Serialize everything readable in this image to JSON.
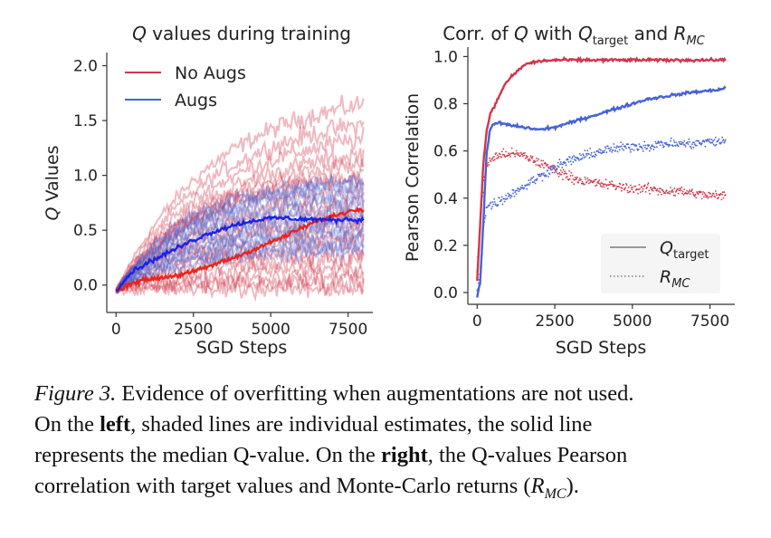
{
  "colors": {
    "no_augs": "#d0364a",
    "augs": "#4562d8",
    "median_no_augs": "#e8251c",
    "median_augs": "#1a22e6"
  },
  "chart_data": [
    {
      "type": "line",
      "title_var": "Q",
      "title_rest": " values during training",
      "xlabel": "SGD Steps",
      "ylabel_var": "Q",
      "ylabel_rest": " Values",
      "xlim": [
        -300,
        8300
      ],
      "ylim": [
        -0.25,
        2.12
      ],
      "xticks": [
        0,
        2500,
        5000,
        7500
      ],
      "xtick_labels": [
        "0",
        "2500",
        "5000",
        "7500"
      ],
      "yticks": [
        0.0,
        0.5,
        1.0,
        1.5,
        2.0
      ],
      "ytick_labels": [
        "0.0",
        "0.5",
        "1.0",
        "1.5",
        "2.0"
      ],
      "grid": false,
      "legend_position": "top-left",
      "legend": [
        {
          "label": "No Augs",
          "color": "#d0364a"
        },
        {
          "label": "Augs",
          "color": "#4562d8"
        }
      ],
      "series": [
        {
          "name": "No Augs",
          "style": "median",
          "x": [
            0,
            500,
            1000,
            1500,
            2000,
            2500,
            3000,
            3500,
            4000,
            4500,
            5000,
            5500,
            6000,
            6500,
            7000,
            7500,
            8000
          ],
          "y": [
            -0.05,
            0.02,
            0.05,
            0.07,
            0.09,
            0.12,
            0.17,
            0.22,
            0.27,
            0.33,
            0.39,
            0.45,
            0.52,
            0.58,
            0.63,
            0.67,
            0.7
          ]
        },
        {
          "name": "Augs",
          "style": "median",
          "x": [
            0,
            500,
            1000,
            1500,
            2000,
            2500,
            3000,
            3500,
            4000,
            4500,
            5000,
            5500,
            6000,
            6500,
            7000,
            7500,
            8000
          ],
          "y": [
            -0.05,
            0.12,
            0.2,
            0.27,
            0.34,
            0.41,
            0.47,
            0.52,
            0.56,
            0.59,
            0.61,
            0.61,
            0.6,
            0.6,
            0.59,
            0.6,
            0.59
          ]
        }
      ],
      "individual_runs_no_augs": [
        1.8,
        1.6,
        1.45,
        1.3,
        1.2,
        1.1,
        1.0,
        0.9,
        0.8,
        0.7,
        0.62,
        0.55,
        0.45,
        0.38,
        0.3,
        0.22,
        0.15,
        0.08,
        0.02,
        -0.03
      ],
      "individual_runs_augs": [
        1.05,
        0.98,
        0.92,
        0.86,
        0.8,
        0.74,
        0.68,
        0.62,
        0.57,
        0.52,
        0.47,
        0.42,
        0.37,
        0.32
      ]
    },
    {
      "type": "line",
      "title_parts": [
        "Corr. of ",
        "Q",
        " with ",
        "Q",
        "target",
        " and ",
        "R",
        "MC"
      ],
      "xlabel": "SGD Steps",
      "ylabel": "Pearson Correlation",
      "xlim": [
        -300,
        8300
      ],
      "ylim": [
        -0.05,
        1.04
      ],
      "xticks": [
        0,
        2500,
        5000,
        7500
      ],
      "xtick_labels": [
        "0",
        "2500",
        "5000",
        "7500"
      ],
      "yticks": [
        0.0,
        0.2,
        0.4,
        0.6,
        0.8,
        1.0
      ],
      "ytick_labels": [
        "0.0",
        "0.2",
        "0.4",
        "0.6",
        "0.8",
        "1.0"
      ],
      "grid": false,
      "legend_position": "bottom-right",
      "legend": [
        {
          "label_main": "Q",
          "label_sub": "target",
          "style": "solid"
        },
        {
          "label_main": "R",
          "label_sub": "MC",
          "style": "dotted"
        }
      ],
      "series": [
        {
          "name": "No Augs",
          "metric": "Q_target",
          "style": "solid",
          "x": [
            0,
            100,
            200,
            300,
            400,
            600,
            800,
            1000,
            1300,
            1600,
            2000,
            2500,
            3000,
            4000,
            5000,
            6000,
            7000,
            8000
          ],
          "y": [
            0.05,
            0.3,
            0.55,
            0.68,
            0.75,
            0.8,
            0.86,
            0.9,
            0.94,
            0.97,
            0.98,
            0.985,
            0.985,
            0.985,
            0.985,
            0.985,
            0.985,
            0.985
          ]
        },
        {
          "name": "Augs",
          "metric": "Q_target",
          "style": "solid",
          "x": [
            0,
            100,
            200,
            300,
            400,
            500,
            700,
            1000,
            1500,
            2000,
            2500,
            3000,
            3500,
            4000,
            4500,
            5000,
            5500,
            6000,
            6500,
            7000,
            7500,
            8000
          ],
          "y": [
            -0.02,
            0.05,
            0.3,
            0.58,
            0.68,
            0.71,
            0.72,
            0.71,
            0.7,
            0.69,
            0.7,
            0.72,
            0.74,
            0.76,
            0.78,
            0.8,
            0.82,
            0.83,
            0.84,
            0.85,
            0.855,
            0.865
          ]
        },
        {
          "name": "No Augs",
          "metric": "R_MC",
          "style": "dotted",
          "x": [
            0,
            100,
            200,
            300,
            400,
            500,
            700,
            1000,
            1500,
            2000,
            2500,
            3000,
            3500,
            4000,
            4500,
            5000,
            5500,
            6000,
            6500,
            7000,
            7500,
            8000
          ],
          "y": [
            0.1,
            0.3,
            0.45,
            0.53,
            0.56,
            0.57,
            0.58,
            0.59,
            0.58,
            0.55,
            0.52,
            0.49,
            0.47,
            0.46,
            0.45,
            0.44,
            0.44,
            0.43,
            0.43,
            0.42,
            0.41,
            0.41
          ]
        },
        {
          "name": "Augs",
          "metric": "R_MC",
          "style": "dotted",
          "x": [
            0,
            100,
            200,
            300,
            400,
            600,
            1000,
            1500,
            2000,
            2500,
            3000,
            3500,
            4000,
            4500,
            5000,
            5500,
            6000,
            6500,
            7000,
            7500,
            8000
          ],
          "y": [
            0.0,
            0.1,
            0.28,
            0.36,
            0.37,
            0.38,
            0.41,
            0.45,
            0.49,
            0.53,
            0.56,
            0.58,
            0.6,
            0.61,
            0.62,
            0.62,
            0.63,
            0.63,
            0.63,
            0.64,
            0.64
          ]
        }
      ]
    }
  ],
  "caption": {
    "fig_label": "Figure 3.",
    "line1_rest": " Evidence of overfitting when augmentations are not used.",
    "line2_pre": "On the ",
    "line2_bold": "left",
    "line2_rest": ", shaded lines are individual estimates, the solid line",
    "line3": "represents the median Q-value. On the ",
    "line3_bold": "right",
    "line3_rest": ", the Q-values Pearson",
    "line4_pre": "correlation with target values and Monte-Carlo returns (",
    "line4_var": "R",
    "line4_sub": "MC",
    "line4_post": ")."
  }
}
